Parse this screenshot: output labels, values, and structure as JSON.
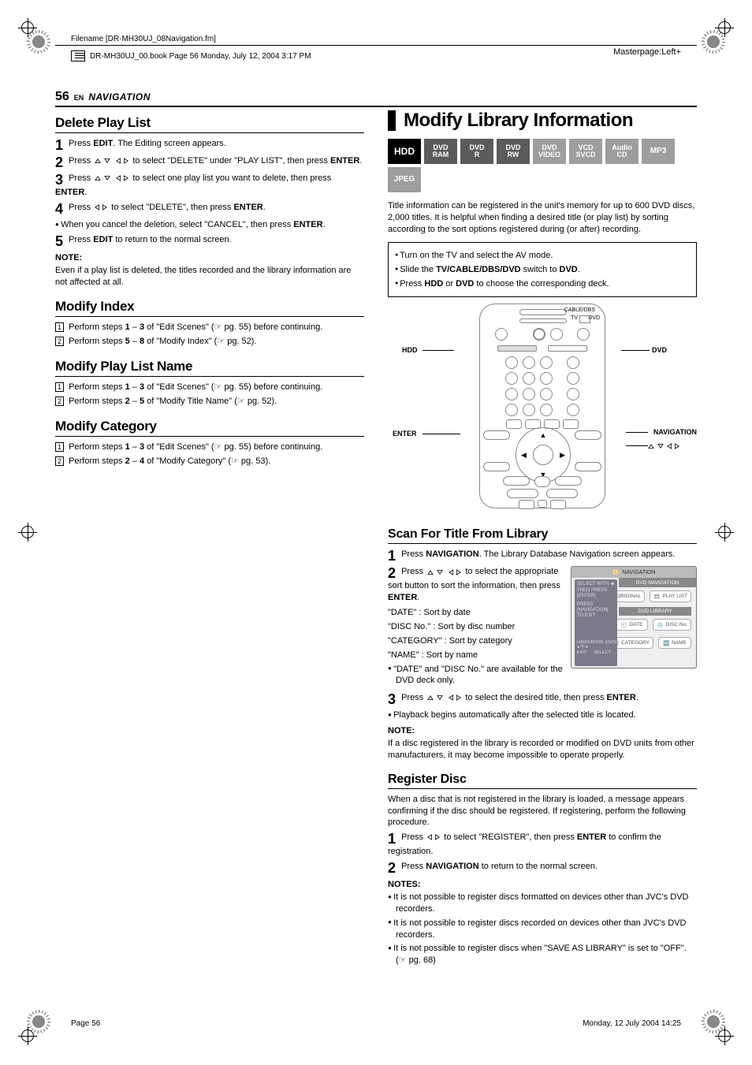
{
  "meta": {
    "filename_label": "Filename [DR-MH30UJ_08Navigation.fm]",
    "book_line": "DR-MH30UJ_00.book  Page 56  Monday, July 12, 2004  3:17 PM",
    "masterpage": "Masterpage:Left+",
    "page_number": "56",
    "lang": "EN",
    "section": "NAVIGATION",
    "footer_left": "Page 56",
    "footer_right": "Monday, 12 July 2004  14:25"
  },
  "left": {
    "delete_play_list": {
      "title": "Delete Play List",
      "s1": {
        "pre": "Press ",
        "b": "EDIT",
        "post": ". The Editing screen appears."
      },
      "s2": {
        "pre": "Press ",
        "mid": " to select \"DELETE\" under \"PLAY LIST\", then press ",
        "b": "ENTER",
        "post": "."
      },
      "s3": {
        "pre": "Press ",
        "mid": " to select one play list you want to delete, then press ",
        "b": "ENTER",
        "post": "."
      },
      "s4": {
        "pre": "Press ",
        "mid": " to select \"DELETE\", then press ",
        "b": "ENTER",
        "post": "."
      },
      "bullet": {
        "pre": "When you cancel the deletion, select \"CANCEL\", then press ",
        "b": "ENTER",
        "post": "."
      },
      "s5": {
        "pre": "Press ",
        "b": "EDIT",
        "post": " to return to the normal screen."
      },
      "note_hd": "NOTE:",
      "note": "Even if a play list is deleted, the titles recorded and the library information are not affected at all."
    },
    "modify_index": {
      "title": "Modify Index",
      "l1a": "Perform steps ",
      "l1b": "1",
      "l1c": " – ",
      "l1d": "3",
      "l1e": " of \"Edit Scenes\" (",
      "l1f": " pg. 55) before continuing.",
      "l2a": "Perform steps ",
      "l2b": "5",
      "l2c": " – ",
      "l2d": "8",
      "l2e": " of \"Modify Index\" (",
      "l2f": " pg. 52)."
    },
    "modify_play_list_name": {
      "title": "Modify Play List Name",
      "l1a": "Perform steps ",
      "l1b": "1",
      "l1c": " – ",
      "l1d": "3",
      "l1e": " of \"Edit Scenes\" (",
      "l1f": " pg. 55) before continuing.",
      "l2a": "Perform steps ",
      "l2b": "2",
      "l2c": " – ",
      "l2d": "5",
      "l2e": " of \"Modify Title Name\" (",
      "l2f": " pg. 52)."
    },
    "modify_category": {
      "title": "Modify Category",
      "l1a": "Perform steps ",
      "l1b": "1",
      "l1c": " – ",
      "l1d": "3",
      "l1e": " of \"Edit Scenes\" (",
      "l1f": " pg. 55) before continuing.",
      "l2a": "Perform steps ",
      "l2b": "2",
      "l2c": " – ",
      "l2d": "4",
      "l2e": " of \"Modify Category\" (",
      "l2f": " pg. 53)."
    }
  },
  "right": {
    "title": "Modify Library Information",
    "badges": [
      {
        "lines": [
          "HDD"
        ],
        "bg": "#000000",
        "cls": "badge-hdd"
      },
      {
        "lines": [
          "DVD",
          "RAM"
        ],
        "bg": "#5b5b5b"
      },
      {
        "lines": [
          "DVD",
          "R"
        ],
        "bg": "#5b5b5b"
      },
      {
        "lines": [
          "DVD",
          "RW"
        ],
        "bg": "#5b5b5b"
      },
      {
        "lines": [
          "DVD",
          "VIDEO"
        ],
        "bg": "#9e9e9e"
      },
      {
        "lines": [
          "VCD",
          "SVCD"
        ],
        "bg": "#9e9e9e"
      },
      {
        "lines": [
          "Audio",
          "CD"
        ],
        "bg": "#9e9e9e"
      },
      {
        "lines": [
          "MP3"
        ],
        "bg": "#9e9e9e"
      },
      {
        "lines": [
          "JPEG"
        ],
        "bg": "#9e9e9e"
      }
    ],
    "intro": "Title information can be registered in the unit's memory for up to 600 DVD discs, 2,000 titles. It is helpful when finding a desired title (or play list) by sorting according to the sort options registered during (or after) recording.",
    "prep": {
      "b1": "Turn on the TV and select the AV mode.",
      "b2a": "Slide the ",
      "b2b": "TV/CABLE/DBS/DVD",
      "b2c": " switch to ",
      "b2d": "DVD",
      "b2e": ".",
      "b3a": "Press ",
      "b3b": "HDD",
      "b3c": " or ",
      "b3d": "DVD",
      "b3e": " to choose the corresponding deck."
    },
    "remote_labels": {
      "cable": "CABLE/DBS",
      "tv": "TV",
      "dvd_top": "DVD",
      "hdd": "HDD",
      "dvd": "DVD",
      "enter": "ENTER",
      "navigation": "NAVIGATION"
    },
    "scan": {
      "title": "Scan For Title From Library",
      "s1": {
        "pre": "Press ",
        "b": "NAVIGATION",
        "post": ". The Library Database Navigation screen appears."
      },
      "s2": {
        "pre": "Press ",
        "mid": " to select the appropriate sort button to sort the information, then press ",
        "b": "ENTER",
        "post": "."
      },
      "sorts": {
        "a": "\"DATE\" : Sort by date",
        "b": "\"DISC No.\" : Sort by disc number",
        "c": "\"CATEGORY\" : Sort by category",
        "d": "\"NAME\" : Sort by name"
      },
      "bullet": "\"DATE\" and \"DISC No.\" are available for the DVD deck only.",
      "s3": {
        "pre": "Press ",
        "mid": " to select the desired title, then press ",
        "b": "ENTER",
        "post": "."
      },
      "after": "Playback begins automatically after the selected title is located.",
      "note_hd": "NOTE:",
      "note": "If a disc registered in the library is recorded or modified on DVD units from other manufacturers, it may become impossible to operate properly."
    },
    "nav_panel": {
      "top_icon": "NAVIGATION",
      "tab": "DVD NAVIGATION",
      "original": "ORIGINAL",
      "playlist": "PLAY LIST",
      "section": "DVD LIBRARY",
      "date": "DATE",
      "disc": "DISC No.",
      "category": "CATEGORY",
      "name": "NAME",
      "left1": "SELECT WITH",
      "left1b": "THEN PRESS [ENTER]",
      "left2": "PRESS [NAVIGATION] TO EXIT",
      "left3a": "NAVIGATION",
      "left3b": "ENTER",
      "left4a": "EXIT",
      "left4b": "SELECT"
    },
    "register": {
      "title": "Register Disc",
      "intro": "When a disc that is not registered in the library is loaded, a message appears confirming if the disc should be registered. If registering, perform the following procedure.",
      "s1": {
        "pre": "Press ",
        "mid": " to select \"REGISTER\", then press ",
        "b": "ENTER",
        "post": " to confirm the registration."
      },
      "s2": {
        "pre": "Press ",
        "b": "NAVIGATION",
        "post": " to return to the normal screen."
      },
      "notes_hd": "NOTES:",
      "n1": "It is not possible to register discs formatted on devices other than JVC's DVD recorders.",
      "n2": "It is not possible to register discs recorded on devices other than JVC's DVD recorders.",
      "n3a": "It is not possible to register discs when \"SAVE AS LIBRARY\" is set to \"OFF\". (",
      "n3b": " pg. 68)"
    }
  }
}
